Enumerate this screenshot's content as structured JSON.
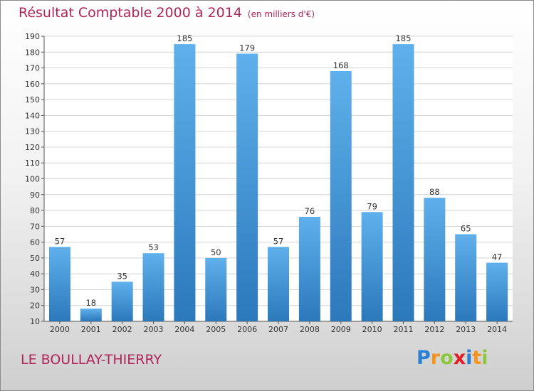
{
  "chart_data": {
    "type": "bar",
    "title": "Résultat Comptable 2000 à 2014",
    "unit": "(en milliers d'€)",
    "categories": [
      "2000",
      "2001",
      "2002",
      "2003",
      "2004",
      "2005",
      "2006",
      "2007",
      "2008",
      "2009",
      "2010",
      "2011",
      "2012",
      "2013",
      "2014"
    ],
    "values": [
      57,
      18,
      35,
      53,
      185,
      50,
      179,
      57,
      76,
      168,
      79,
      185,
      88,
      65,
      47
    ],
    "ylim": [
      10,
      190
    ],
    "yticks": [
      10,
      20,
      30,
      40,
      50,
      60,
      70,
      80,
      90,
      100,
      110,
      120,
      130,
      140,
      150,
      160,
      170,
      180,
      190
    ],
    "grid": true,
    "xlabel": "",
    "ylabel": ""
  },
  "commune": "LE BOULLAY-THIERRY",
  "logo": {
    "letters": [
      "P",
      "r",
      "o",
      "x",
      "i",
      "t",
      "i"
    ],
    "colors": [
      "#2a7fd4",
      "#f7941d",
      "#8dc63f",
      "#e31b23",
      "#2a7fd4",
      "#f7941d",
      "#8dc63f"
    ]
  },
  "colors": {
    "bar_top": "#5fb0ec",
    "bar_bottom": "#2b78bb",
    "accent": "#b0245a",
    "grid": "#d4d4d4"
  }
}
